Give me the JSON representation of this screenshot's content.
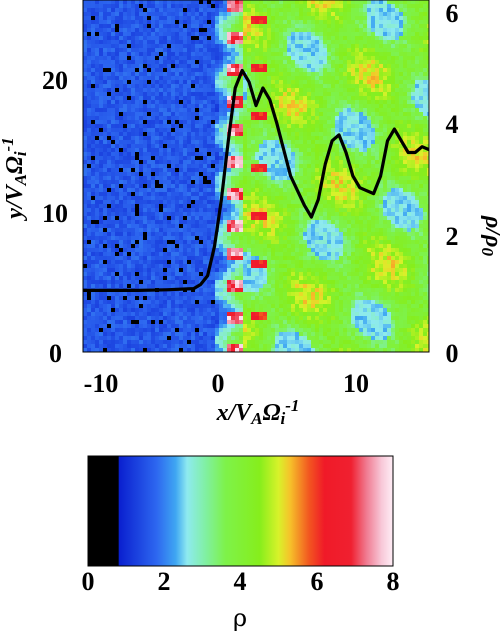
{
  "chart_data": [
    {
      "type": "heatmap",
      "title": "",
      "xlabel": "x/V_AΩi⁻¹",
      "ylabel": "y/V_AΩi⁻¹",
      "y2label": "ρ/ρ0",
      "xlim": [
        -10,
        15
      ],
      "ylim": [
        0,
        25
      ],
      "y2lim": [
        0,
        6
      ],
      "x_ticks": [
        "-10",
        "0",
        "10"
      ],
      "y_ticks": [
        "0",
        "10",
        "20"
      ],
      "y2_ticks": [
        "0",
        "2",
        "4",
        "6"
      ],
      "series": [
        {
          "type": "line",
          "axis": "right",
          "color": "#000000",
          "x": [
            -10,
            -8,
            -6,
            -4,
            -2,
            -1.5,
            -1,
            -0.5,
            0,
            0.5,
            1,
            1.5,
            2,
            2.5,
            3,
            3.5,
            4,
            5,
            6,
            6.5,
            7,
            7.5,
            8,
            8.5,
            9,
            9.5,
            10,
            10.5,
            11,
            11.5,
            12,
            12.5,
            13,
            13.5,
            14,
            14.5,
            15
          ],
          "y": [
            1.05,
            1.05,
            1.05,
            1.06,
            1.08,
            1.15,
            1.3,
            1.8,
            2.6,
            3.6,
            4.5,
            4.8,
            4.6,
            4.2,
            4.5,
            4.3,
            3.9,
            3.0,
            2.5,
            2.3,
            2.6,
            3.2,
            3.6,
            3.7,
            3.4,
            3.0,
            2.8,
            2.75,
            2.7,
            3.0,
            3.6,
            3.8,
            3.6,
            3.4,
            3.4,
            3.5,
            3.45
          ]
        }
      ]
    },
    {
      "type": "colorbar",
      "label": "ρ",
      "range": [
        0,
        8
      ],
      "ticks": [
        "0",
        "2",
        "4",
        "6",
        "8"
      ],
      "colors": [
        {
          "value": 0,
          "color": "#000000"
        },
        {
          "value": 0.8,
          "color": "#000000"
        },
        {
          "value": 0.81,
          "color": "#0a1fcf"
        },
        {
          "value": 1.8,
          "color": "#2d67f0"
        },
        {
          "value": 2.3,
          "color": "#3fa6f2"
        },
        {
          "value": 2.6,
          "color": "#8eeaf0"
        },
        {
          "value": 3.1,
          "color": "#80f0a0"
        },
        {
          "value": 3.6,
          "color": "#7ef24a"
        },
        {
          "value": 4.5,
          "color": "#86ee1c"
        },
        {
          "value": 5.0,
          "color": "#d8f22a"
        },
        {
          "value": 5.3,
          "color": "#f6c22a"
        },
        {
          "value": 5.8,
          "color": "#f25620"
        },
        {
          "value": 6.2,
          "color": "#f01a28"
        },
        {
          "value": 6.9,
          "color": "#f02030"
        },
        {
          "value": 7.3,
          "color": "#f07a90"
        },
        {
          "value": 7.7,
          "color": "#f8c8d8"
        },
        {
          "value": 8.0,
          "color": "#ffeef6"
        }
      ]
    }
  ]
}
